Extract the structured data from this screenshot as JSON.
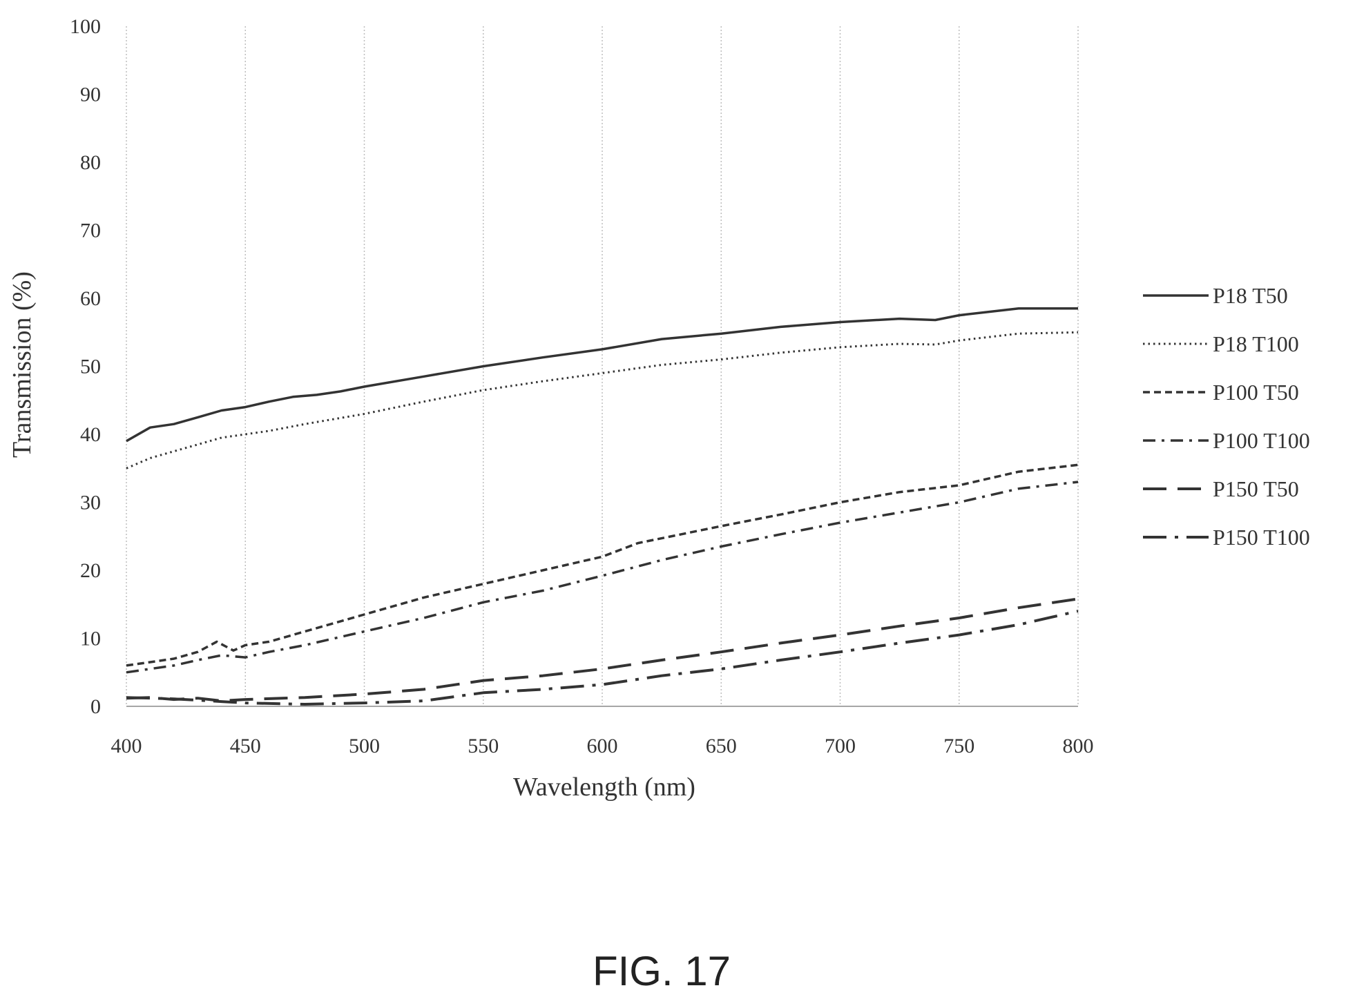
{
  "chart_data": {
    "type": "line",
    "title": "",
    "xlabel": "Wavelength (nm)",
    "ylabel": "Transmission (%)",
    "xlim": [
      400,
      800
    ],
    "ylim": [
      0,
      100
    ],
    "x_ticks": [
      "400",
      "450",
      "500",
      "550",
      "600",
      "650",
      "700",
      "750",
      "800"
    ],
    "y_ticks": [
      "0",
      "10",
      "20",
      "30",
      "40",
      "50",
      "60",
      "70",
      "80",
      "90",
      "100"
    ],
    "grid": "vertical dotted",
    "legend_position": "right",
    "series": [
      {
        "name": "P18 T50",
        "style": "solid",
        "x": [
          400,
          410,
          420,
          430,
          440,
          450,
          460,
          470,
          480,
          490,
          500,
          525,
          550,
          575,
          600,
          625,
          650,
          675,
          700,
          725,
          740,
          750,
          775,
          800
        ],
        "values": [
          39,
          41,
          41.5,
          42.5,
          43.5,
          44,
          44.8,
          45.5,
          45.8,
          46.3,
          47,
          48.5,
          50,
          51.3,
          52.5,
          54,
          54.8,
          55.8,
          56.5,
          57,
          56.8,
          57.5,
          58.5,
          58.5
        ]
      },
      {
        "name": "P18 T100",
        "style": "dotted",
        "x": [
          400,
          410,
          420,
          430,
          440,
          450,
          460,
          475,
          500,
          525,
          550,
          575,
          600,
          625,
          650,
          675,
          700,
          725,
          740,
          750,
          775,
          800
        ],
        "values": [
          35,
          36.5,
          37.5,
          38.5,
          39.5,
          40,
          40.5,
          41.5,
          43,
          44.8,
          46.5,
          47.8,
          49,
          50.2,
          51,
          52,
          52.8,
          53.3,
          53.2,
          53.8,
          54.8,
          55
        ]
      },
      {
        "name": "P100 T50",
        "style": "dashed",
        "x": [
          400,
          410,
          420,
          430,
          438,
          445,
          450,
          460,
          475,
          500,
          525,
          550,
          575,
          600,
          615,
          650,
          675,
          700,
          725,
          750,
          775,
          800
        ],
        "values": [
          6,
          6.5,
          7,
          8,
          9.5,
          8.2,
          9,
          9.5,
          11,
          13.5,
          16,
          18,
          20,
          22,
          24,
          26.5,
          28.2,
          30,
          31.5,
          32.5,
          34.5,
          35.5
        ]
      },
      {
        "name": "P100 T100",
        "style": "dash-dot",
        "x": [
          400,
          410,
          420,
          430,
          440,
          450,
          460,
          475,
          500,
          525,
          550,
          575,
          600,
          625,
          650,
          675,
          700,
          725,
          750,
          775,
          800
        ],
        "values": [
          5,
          5.5,
          6,
          6.8,
          7.5,
          7.2,
          8,
          9,
          11,
          13,
          15.3,
          17,
          19.2,
          21.5,
          23.5,
          25.3,
          27,
          28.5,
          30,
          32,
          33
        ]
      },
      {
        "name": "P150 T50",
        "style": "long-dash",
        "x": [
          400,
          410,
          420,
          430,
          440,
          450,
          475,
          500,
          525,
          550,
          575,
          600,
          625,
          650,
          675,
          700,
          725,
          750,
          775,
          800
        ],
        "values": [
          1.2,
          1.3,
          1,
          1.2,
          0.8,
          1,
          1.3,
          1.8,
          2.5,
          3.8,
          4.5,
          5.5,
          6.8,
          8,
          9.3,
          10.5,
          11.8,
          13,
          14.5,
          15.8
        ]
      },
      {
        "name": "P150 T100",
        "style": "long-dash-dot",
        "x": [
          400,
          410,
          420,
          430,
          440,
          450,
          475,
          500,
          525,
          550,
          575,
          600,
          625,
          650,
          675,
          700,
          725,
          750,
          775,
          800
        ],
        "values": [
          1.3,
          1.2,
          1.1,
          0.9,
          0.7,
          0.5,
          0.3,
          0.5,
          0.8,
          2,
          2.5,
          3.2,
          4.5,
          5.5,
          6.8,
          8,
          9.3,
          10.5,
          12,
          14
        ]
      }
    ]
  },
  "figure_label": "FIG. 17"
}
